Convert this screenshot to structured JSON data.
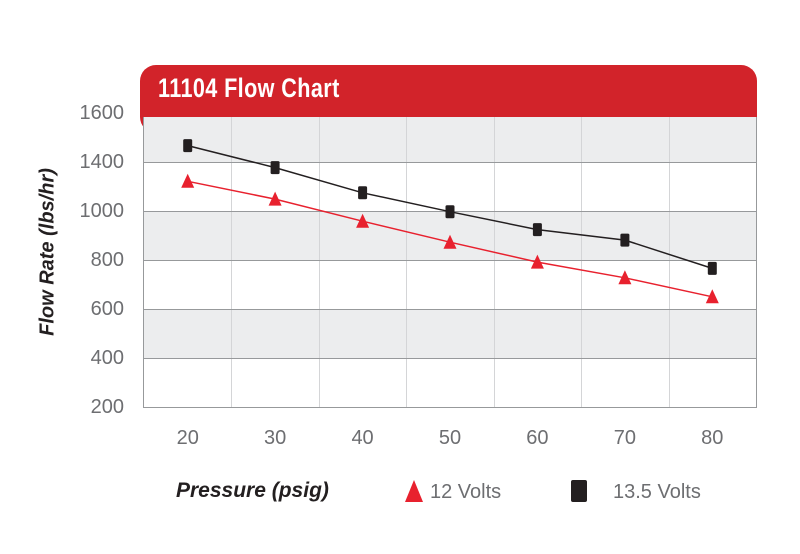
{
  "header": {
    "title": "11104 Flow Chart"
  },
  "chart_data": {
    "type": "line",
    "title": "11104 Flow Chart",
    "xlabel": "Pressure (psig)",
    "ylabel": "Flow Rate (lbs/hr)",
    "x": [
      20,
      30,
      40,
      50,
      60,
      70,
      80
    ],
    "x_tick_labels": [
      "20",
      "30",
      "40",
      "50",
      "60",
      "70",
      "80"
    ],
    "y_tick_labels": [
      "1600",
      "1400",
      "1000",
      "800",
      "600",
      "400",
      "200"
    ],
    "ylim": [
      200,
      1600
    ],
    "grid": true,
    "legend_position": "bottom",
    "series": [
      {
        "name": "12 Volts",
        "marker": "triangle",
        "color": "#E8212E",
        "values": [
          1275,
          1190,
          1085,
          985,
          890,
          815,
          725
        ]
      },
      {
        "name": "13.5 Volts",
        "marker": "square",
        "color": "#231F20",
        "values": [
          1445,
          1340,
          1220,
          1130,
          1045,
          995,
          860
        ]
      }
    ]
  },
  "colors": {
    "banner_red": "#D2232A",
    "band_gray": "#ECEDEE",
    "gridline": "#97999B",
    "vertical_gridline": "#D4D5D7",
    "tick_text": "#6D6E71",
    "axis_title_text": "#231F20",
    "legend_text": "#6D6E71",
    "series_12v": "#E8212E",
    "series_13_5v": "#231F20"
  }
}
